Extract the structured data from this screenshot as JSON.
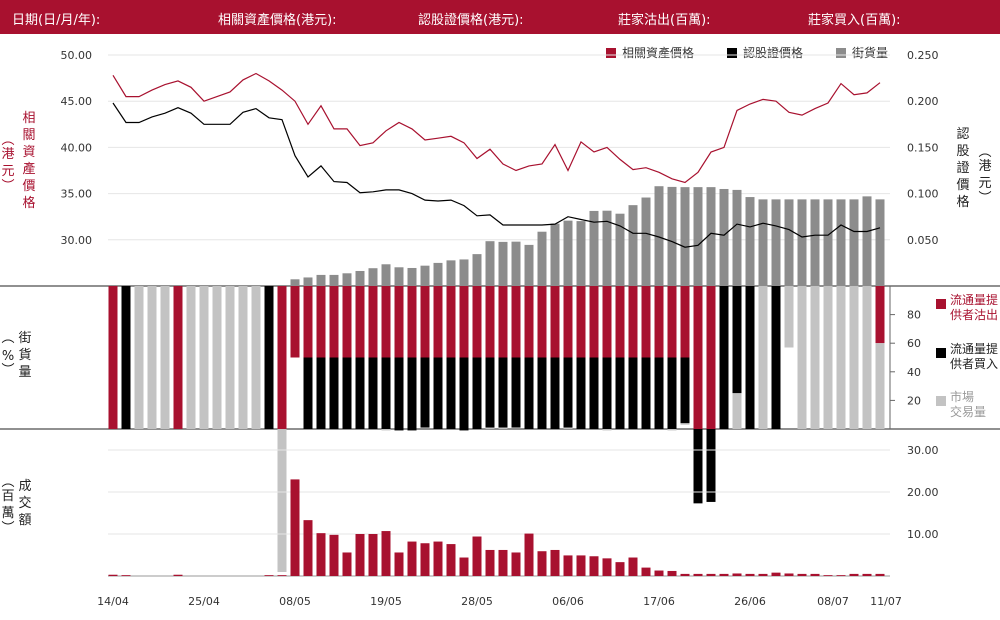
{
  "header": {
    "date_label": "日期(日/月/年):",
    "asset_price_label": "相關資產價格(港元):",
    "warrant_price_label": "認股證價格(港元):",
    "mm_sell_label": "莊家沽出(百萬):",
    "mm_buy_label": "莊家買入(百萬):"
  },
  "legend": {
    "asset": "相關資產價格",
    "warrant": "認股證價格",
    "outstanding": "街貨量"
  },
  "colors": {
    "accent": "#a8112f",
    "black": "#000000",
    "gray_dark": "#8c8c8c",
    "gray_light": "#c3c3c3"
  },
  "panel1": {
    "left_label_chars": [
      "相",
      "關",
      "資",
      "產",
      "價",
      "格"
    ],
    "left_unit_chars": [
      "港",
      "元"
    ],
    "right_label_chars": [
      "認",
      "股",
      "證",
      "價",
      "格"
    ],
    "right_unit_chars": [
      "港",
      "元"
    ],
    "left_ticks": [
      "30.00",
      "35.00",
      "40.00",
      "45.00",
      "50.00"
    ],
    "right_ticks": [
      "0.050",
      "0.100",
      "0.150",
      "0.200",
      "0.250"
    ]
  },
  "panel2": {
    "left_label_chars": [
      "街",
      "貨",
      "量"
    ],
    "left_unit": "%",
    "ticks": [
      "20",
      "40",
      "60",
      "80"
    ],
    "legend": [
      {
        "line1": "流通量提",
        "line2": "供者沽出"
      },
      {
        "line1": "流通量提",
        "line2": "供者買入"
      },
      {
        "line1": "市場",
        "line2": "交易量"
      }
    ]
  },
  "panel3": {
    "left_label_chars": [
      "成",
      "交",
      "額"
    ],
    "left_unit_chars": [
      "百",
      "萬"
    ],
    "ticks": [
      "10.00",
      "20.00",
      "30.00"
    ]
  },
  "x_labels": [
    "14/04",
    "25/04",
    "08/05",
    "19/05",
    "28/05",
    "06/06",
    "17/06",
    "26/06",
    "08/07",
    "11/07"
  ],
  "chart_data": {
    "type": "line+bar",
    "n_points": 60,
    "x_label_indices": [
      0,
      7,
      14,
      21,
      28,
      35,
      42,
      49,
      56,
      59
    ],
    "asset_price": {
      "unit": "港元",
      "ylim": [
        25,
        50
      ],
      "values": [
        47.8,
        45.5,
        45.5,
        46.2,
        46.8,
        47.2,
        46.5,
        45.0,
        45.5,
        46.0,
        47.3,
        48.0,
        47.2,
        46.2,
        45.0,
        42.5,
        44.5,
        42.0,
        42.0,
        40.2,
        40.5,
        41.8,
        42.7,
        42.0,
        40.8,
        41.0,
        41.2,
        40.5,
        38.8,
        39.8,
        38.2,
        37.5,
        38.0,
        38.2,
        40.3,
        37.5,
        40.6,
        39.5,
        40.0,
        38.7,
        37.6,
        37.8,
        37.3,
        36.6,
        36.2,
        37.3,
        39.5,
        40.0,
        44.0,
        44.7,
        45.2,
        45.0,
        43.8,
        43.5,
        44.2,
        44.8,
        46.9,
        45.7,
        45.9,
        47.0
      ]
    },
    "warrant_price": {
      "unit": "港元",
      "ylim": [
        0,
        0.25
      ],
      "values": [
        0.198,
        0.177,
        0.177,
        0.183,
        0.187,
        0.193,
        0.187,
        0.175,
        0.175,
        0.175,
        0.188,
        0.192,
        0.182,
        0.18,
        0.141,
        0.118,
        0.13,
        0.113,
        0.112,
        0.101,
        0.102,
        0.104,
        0.104,
        0.1,
        0.093,
        0.092,
        0.093,
        0.087,
        0.076,
        0.077,
        0.066,
        0.066,
        0.066,
        0.066,
        0.067,
        0.075,
        0.072,
        0.069,
        0.07,
        0.065,
        0.057,
        0.057,
        0.053,
        0.048,
        0.042,
        0.044,
        0.057,
        0.055,
        0.067,
        0.064,
        0.068,
        0.065,
        0.061,
        0.053,
        0.055,
        0.055,
        0.066,
        0.059,
        0.059,
        0.063
      ]
    },
    "outstanding_bars": {
      "values": [
        0,
        0,
        0,
        0,
        0,
        0,
        0,
        0,
        0,
        0,
        0,
        0,
        0,
        0,
        0.029,
        0.037,
        0.048,
        0.048,
        0.055,
        0.065,
        0.077,
        0.094,
        0.081,
        0.078,
        0.088,
        0.1,
        0.111,
        0.115,
        0.138,
        0.194,
        0.191,
        0.192,
        0.178,
        0.235,
        0.27,
        0.283,
        0.281,
        0.325,
        0.326,
        0.313,
        0.35,
        0.383,
        0.432,
        0.429,
        0.428,
        0.428,
        0.428,
        0.42,
        0.416,
        0.385,
        0.375,
        0.375,
        0.375,
        0.375,
        0.375,
        0.375,
        0.375,
        0.375,
        0.388,
        0.375
      ]
    },
    "turnover_pct": {
      "ylim": [
        0,
        100
      ],
      "mm_sell": [
        100,
        0,
        0,
        0,
        0,
        100,
        0,
        0,
        0,
        0,
        0,
        0,
        0,
        100,
        50,
        50,
        50,
        50,
        50,
        50,
        50,
        50,
        50,
        50,
        50,
        50,
        50,
        50,
        50,
        50,
        50,
        50,
        50,
        50,
        50,
        50,
        50,
        50,
        50,
        50,
        50,
        50,
        50,
        50,
        50,
        100,
        100,
        0,
        0,
        0,
        0,
        0,
        0,
        0,
        0,
        0,
        0,
        0,
        0,
        40
      ],
      "mm_buy": [
        0,
        100,
        0,
        0,
        0,
        0,
        0,
        0,
        0,
        0,
        0,
        0,
        100,
        0,
        0,
        50,
        50,
        50,
        50,
        50,
        50,
        50,
        51,
        51,
        49,
        50,
        50,
        51,
        50,
        49,
        49,
        49,
        50,
        50,
        50,
        49,
        50,
        50,
        50,
        50,
        50,
        50,
        50,
        50,
        46,
        52,
        51,
        100,
        75,
        100,
        0,
        100,
        0,
        0,
        0,
        0,
        0,
        0,
        0,
        0
      ],
      "market": [
        0,
        0,
        100,
        100,
        100,
        0,
        100,
        100,
        100,
        100,
        100,
        100,
        0,
        100,
        0,
        0,
        0,
        0,
        0,
        0,
        0,
        1,
        0,
        0,
        0,
        0,
        0,
        0,
        0,
        1,
        1,
        0,
        0,
        0,
        0,
        1,
        0,
        0,
        1,
        0,
        0,
        0,
        0,
        1,
        1,
        0,
        0,
        0,
        25,
        0,
        100,
        0,
        43,
        100,
        100,
        100,
        100,
        100,
        100,
        60
      ]
    },
    "turnover": {
      "unit": "百萬",
      "ylim": [
        0,
        35
      ],
      "values": [
        0.3,
        0.2,
        0,
        0,
        0,
        0.3,
        0,
        0,
        0,
        0,
        0,
        0,
        0.2,
        0.2,
        23.0,
        13.3,
        10.2,
        9.8,
        5.6,
        10.0,
        10.0,
        10.7,
        5.6,
        8.2,
        7.8,
        8.2,
        7.6,
        4.4,
        9.4,
        6.2,
        6.2,
        5.6,
        10.1,
        5.9,
        6.2,
        4.9,
        4.9,
        4.7,
        4.2,
        3.3,
        4.4,
        2.0,
        1.3,
        1.2,
        0.5,
        0.5,
        0.5,
        0.5,
        0.6,
        0.5,
        0.5,
        0.8,
        0.6,
        0.5,
        0.5,
        0.2,
        0.2,
        0.5,
        0.5,
        0.5
      ]
    }
  }
}
